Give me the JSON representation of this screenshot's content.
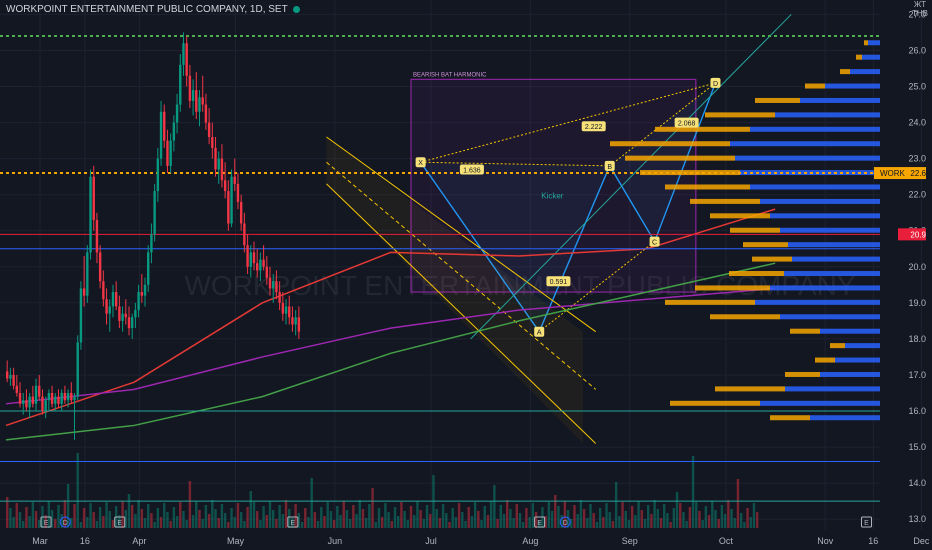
{
  "header": {
    "symbol_line": "WORKPOINT ENTERTAINMENT PUBLIC COMPANY, 1D, SET",
    "currency_label": "THB",
    "currency_prefix": "ЖT"
  },
  "watermark": "WORKPOINT ENTERTAINMENT PUBLIC COMPANY",
  "colors": {
    "background": "#131722",
    "up": "#089981",
    "down": "#f23645",
    "volume_profile_up": "#2962ff",
    "volume_profile_down": "#f7a600",
    "harmonic_line": "#2196f3",
    "channel": "#f7c600",
    "ma_red": "#e53935",
    "ma_purple": "#9c27b0",
    "ma_green": "#43a047"
  },
  "chart_data": {
    "type": "candlestick",
    "title": "WORKPOINT ENTERTAINMENT PUBLIC COMPANY, 1D, SET",
    "ylim": [
      12.7,
      27.4
    ],
    "y_ticks": [
      "27.0",
      "26.0",
      "25.0",
      "24.0",
      "23.0",
      "22.0",
      "21.0",
      "20.0",
      "19.0",
      "18.0",
      "17.0",
      "16.0",
      "15.0",
      "14.0",
      "13.0"
    ],
    "x_ticks": [
      {
        "label": "Mar",
        "day": 0
      },
      {
        "label": "16",
        "day": 14
      },
      {
        "label": "Apr",
        "day": 31
      },
      {
        "label": "May",
        "day": 61
      },
      {
        "label": "Jun",
        "day": 92
      },
      {
        "label": "Jul",
        "day": 122
      },
      {
        "label": "Aug",
        "day": 153
      },
      {
        "label": "Sep",
        "day": 184
      },
      {
        "label": "Oct",
        "day": 214
      },
      {
        "label": "Nov",
        "day": 245
      },
      {
        "label": "16",
        "day": 260
      },
      {
        "label": "Dec",
        "day": 275
      }
    ],
    "last_price_label": "22.6",
    "symbol_tag": "WORK",
    "level_label": "20.9",
    "horizontal_levels": [
      {
        "value": 27.5,
        "color": "#f23645"
      },
      {
        "value": 26.4,
        "color": "#4caf50",
        "style": "dotted"
      },
      {
        "value": 22.6,
        "color": "#f7a600",
        "style": "dotted"
      },
      {
        "value": 20.9,
        "color": "#e91e3a"
      },
      {
        "value": 20.5,
        "color": "#2962ff"
      },
      {
        "value": 16.0,
        "color": "#26a69a"
      },
      {
        "value": 14.6,
        "color": "#2962ff"
      },
      {
        "value": 13.5,
        "color": "#26a69a"
      }
    ],
    "pattern_label": "BEARISH BAT HARMONIC",
    "pattern_box": {
      "d0": 122,
      "d1": 214,
      "p0": 19.3,
      "p1": 25.2
    },
    "harmonic_points": [
      {
        "label": "X",
        "day": 125,
        "price": 22.9
      },
      {
        "label": "A",
        "day": 162,
        "price": 18.2
      },
      {
        "label": "B",
        "day": 184,
        "price": 22.8
      },
      {
        "label": "C",
        "day": 198,
        "price": 20.7
      },
      {
        "label": "D",
        "day": 217,
        "price": 25.1
      }
    ],
    "ratio_labels": [
      {
        "text": "1.636",
        "day": 141,
        "price": 22.7
      },
      {
        "text": "0.591",
        "day": 168,
        "price": 19.6
      },
      {
        "text": "2.222",
        "day": 179,
        "price": 23.9
      },
      {
        "text": "2.068",
        "day": 208,
        "price": 24.0
      }
    ],
    "annotation": "Kicker",
    "event_markers": [
      {
        "text": "E",
        "day": 5
      },
      {
        "text": "D",
        "day": 11
      },
      {
        "text": "E",
        "day": 28
      },
      {
        "text": "E",
        "day": 82
      },
      {
        "text": "E",
        "day": 159
      },
      {
        "text": "D",
        "day": 167
      },
      {
        "text": "E",
        "day": 261
      }
    ],
    "candles": [
      {
        "d": 0,
        "o": 17.1,
        "h": 17.4,
        "l": 16.8,
        "c": 16.9
      },
      {
        "d": 1,
        "o": 16.9,
        "h": 17.2,
        "l": 16.7,
        "c": 17.0
      },
      {
        "d": 2,
        "o": 17.0,
        "h": 17.2,
        "l": 16.6,
        "c": 16.7
      },
      {
        "d": 3,
        "o": 16.7,
        "h": 17.0,
        "l": 16.4,
        "c": 16.5
      },
      {
        "d": 4,
        "o": 16.5,
        "h": 16.8,
        "l": 16.1,
        "c": 16.2
      },
      {
        "d": 5,
        "o": 16.2,
        "h": 16.5,
        "l": 15.9,
        "c": 16.3
      },
      {
        "d": 6,
        "o": 16.3,
        "h": 16.6,
        "l": 16.0,
        "c": 16.1
      },
      {
        "d": 7,
        "o": 16.1,
        "h": 16.5,
        "l": 15.8,
        "c": 16.4
      },
      {
        "d": 8,
        "o": 16.4,
        "h": 16.7,
        "l": 16.1,
        "c": 16.2
      },
      {
        "d": 9,
        "o": 16.2,
        "h": 16.9,
        "l": 16.0,
        "c": 16.7
      },
      {
        "d": 10,
        "o": 16.7,
        "h": 17.0,
        "l": 16.3,
        "c": 16.4
      },
      {
        "d": 11,
        "o": 16.4,
        "h": 16.6,
        "l": 15.9,
        "c": 16.0
      },
      {
        "d": 12,
        "o": 16.0,
        "h": 16.4,
        "l": 15.8,
        "c": 16.3
      },
      {
        "d": 13,
        "o": 16.3,
        "h": 16.6,
        "l": 16.0,
        "c": 16.5
      },
      {
        "d": 14,
        "o": 16.5,
        "h": 16.7,
        "l": 16.1,
        "c": 16.2
      },
      {
        "d": 15,
        "o": 16.2,
        "h": 16.5,
        "l": 16.0,
        "c": 16.4
      },
      {
        "d": 16,
        "o": 16.4,
        "h": 16.6,
        "l": 16.1,
        "c": 16.2
      },
      {
        "d": 17,
        "o": 16.2,
        "h": 16.6,
        "l": 16.0,
        "c": 16.5
      },
      {
        "d": 18,
        "o": 16.5,
        "h": 16.7,
        "l": 16.2,
        "c": 16.3
      },
      {
        "d": 19,
        "o": 16.3,
        "h": 16.6,
        "l": 16.1,
        "c": 16.5
      },
      {
        "d": 20,
        "o": 16.5,
        "h": 16.8,
        "l": 16.2,
        "c": 16.3
      },
      {
        "d": 21,
        "o": 16.3,
        "h": 16.5,
        "l": 15.2,
        "c": 16.4
      },
      {
        "d": 22,
        "o": 16.4,
        "h": 18.1,
        "l": 16.3,
        "c": 17.9
      },
      {
        "d": 23,
        "o": 17.9,
        "h": 19.6,
        "l": 17.7,
        "c": 19.4
      },
      {
        "d": 24,
        "o": 19.4,
        "h": 20.3,
        "l": 18.9,
        "c": 19.2
      },
      {
        "d": 25,
        "o": 19.2,
        "h": 20.6,
        "l": 19.0,
        "c": 20.4
      },
      {
        "d": 26,
        "o": 20.4,
        "h": 22.7,
        "l": 20.2,
        "c": 22.5
      },
      {
        "d": 27,
        "o": 22.5,
        "h": 22.8,
        "l": 21.0,
        "c": 21.3
      },
      {
        "d": 28,
        "o": 21.3,
        "h": 21.5,
        "l": 20.1,
        "c": 20.4
      },
      {
        "d": 29,
        "o": 20.4,
        "h": 20.6,
        "l": 19.4,
        "c": 19.6
      },
      {
        "d": 30,
        "o": 19.6,
        "h": 19.9,
        "l": 18.9,
        "c": 19.1
      },
      {
        "d": 31,
        "o": 19.1,
        "h": 19.4,
        "l": 18.4,
        "c": 18.7
      },
      {
        "d": 32,
        "o": 18.7,
        "h": 19.1,
        "l": 18.2,
        "c": 18.9
      },
      {
        "d": 33,
        "o": 18.9,
        "h": 19.5,
        "l": 18.6,
        "c": 19.3
      },
      {
        "d": 34,
        "o": 19.3,
        "h": 19.6,
        "l": 18.8,
        "c": 18.9
      },
      {
        "d": 35,
        "o": 18.9,
        "h": 19.2,
        "l": 18.3,
        "c": 18.5
      },
      {
        "d": 36,
        "o": 18.5,
        "h": 18.9,
        "l": 18.2,
        "c": 18.7
      },
      {
        "d": 37,
        "o": 18.7,
        "h": 19.1,
        "l": 18.4,
        "c": 18.6
      },
      {
        "d": 38,
        "o": 18.6,
        "h": 18.9,
        "l": 18.1,
        "c": 18.3
      },
      {
        "d": 39,
        "o": 18.3,
        "h": 18.7,
        "l": 18.0,
        "c": 18.6
      },
      {
        "d": 40,
        "o": 18.6,
        "h": 19.0,
        "l": 18.3,
        "c": 18.8
      },
      {
        "d": 41,
        "o": 18.8,
        "h": 19.5,
        "l": 18.6,
        "c": 19.3
      },
      {
        "d": 42,
        "o": 19.3,
        "h": 19.8,
        "l": 19.0,
        "c": 19.2
      },
      {
        "d": 43,
        "o": 19.2,
        "h": 19.7,
        "l": 18.9,
        "c": 19.5
      },
      {
        "d": 44,
        "o": 19.5,
        "h": 20.6,
        "l": 19.3,
        "c": 20.4
      },
      {
        "d": 45,
        "o": 20.4,
        "h": 21.2,
        "l": 20.1,
        "c": 20.9
      },
      {
        "d": 46,
        "o": 20.9,
        "h": 22.3,
        "l": 20.7,
        "c": 22.1
      },
      {
        "d": 47,
        "o": 22.1,
        "h": 23.3,
        "l": 21.8,
        "c": 23.0
      },
      {
        "d": 48,
        "o": 23.0,
        "h": 24.6,
        "l": 22.8,
        "c": 24.3
      },
      {
        "d": 49,
        "o": 24.3,
        "h": 24.5,
        "l": 23.3,
        "c": 23.5
      },
      {
        "d": 50,
        "o": 23.5,
        "h": 23.8,
        "l": 22.6,
        "c": 22.8
      },
      {
        "d": 51,
        "o": 22.8,
        "h": 23.7,
        "l": 22.6,
        "c": 23.5
      },
      {
        "d": 52,
        "o": 23.5,
        "h": 24.2,
        "l": 23.2,
        "c": 24.0
      },
      {
        "d": 53,
        "o": 24.0,
        "h": 24.8,
        "l": 23.7,
        "c": 24.5
      },
      {
        "d": 54,
        "o": 24.5,
        "h": 25.9,
        "l": 24.3,
        "c": 25.6
      },
      {
        "d": 55,
        "o": 25.6,
        "h": 26.5,
        "l": 25.3,
        "c": 26.2
      },
      {
        "d": 56,
        "o": 26.2,
        "h": 26.4,
        "l": 25.0,
        "c": 25.3
      },
      {
        "d": 57,
        "o": 25.3,
        "h": 25.6,
        "l": 24.4,
        "c": 24.6
      },
      {
        "d": 58,
        "o": 24.6,
        "h": 25.2,
        "l": 24.2,
        "c": 24.9
      },
      {
        "d": 59,
        "o": 24.9,
        "h": 25.4,
        "l": 24.1,
        "c": 24.3
      },
      {
        "d": 60,
        "o": 24.3,
        "h": 24.9,
        "l": 23.9,
        "c": 24.7
      },
      {
        "d": 61,
        "o": 24.7,
        "h": 25.3,
        "l": 24.3,
        "c": 24.5
      },
      {
        "d": 62,
        "o": 24.5,
        "h": 24.8,
        "l": 23.8,
        "c": 24.0
      },
      {
        "d": 63,
        "o": 24.0,
        "h": 24.4,
        "l": 23.4,
        "c": 23.6
      },
      {
        "d": 64,
        "o": 23.6,
        "h": 24.0,
        "l": 23.0,
        "c": 23.3
      },
      {
        "d": 65,
        "o": 23.3,
        "h": 23.6,
        "l": 22.5,
        "c": 22.7
      },
      {
        "d": 66,
        "o": 22.7,
        "h": 23.2,
        "l": 22.3,
        "c": 23.0
      },
      {
        "d": 67,
        "o": 23.0,
        "h": 23.4,
        "l": 22.2,
        "c": 22.4
      },
      {
        "d": 68,
        "o": 22.4,
        "h": 22.9,
        "l": 21.9,
        "c": 22.1
      },
      {
        "d": 69,
        "o": 22.1,
        "h": 22.4,
        "l": 21.0,
        "c": 21.2
      },
      {
        "d": 70,
        "o": 21.2,
        "h": 22.7,
        "l": 21.1,
        "c": 22.5
      },
      {
        "d": 71,
        "o": 22.5,
        "h": 23.0,
        "l": 22.1,
        "c": 22.3
      },
      {
        "d": 72,
        "o": 22.3,
        "h": 22.6,
        "l": 21.6,
        "c": 21.8
      },
      {
        "d": 73,
        "o": 21.8,
        "h": 22.0,
        "l": 21.0,
        "c": 21.2
      },
      {
        "d": 74,
        "o": 21.2,
        "h": 21.5,
        "l": 20.4,
        "c": 20.6
      },
      {
        "d": 75,
        "o": 20.6,
        "h": 20.9,
        "l": 19.8,
        "c": 20.0
      },
      {
        "d": 76,
        "o": 20.0,
        "h": 20.6,
        "l": 19.7,
        "c": 20.4
      },
      {
        "d": 77,
        "o": 20.4,
        "h": 20.7,
        "l": 19.9,
        "c": 20.1
      },
      {
        "d": 78,
        "o": 20.1,
        "h": 20.5,
        "l": 19.7,
        "c": 19.9
      },
      {
        "d": 79,
        "o": 19.9,
        "h": 20.4,
        "l": 19.6,
        "c": 20.2
      },
      {
        "d": 80,
        "o": 20.2,
        "h": 20.6,
        "l": 19.9,
        "c": 20.0
      },
      {
        "d": 81,
        "o": 20.0,
        "h": 20.3,
        "l": 19.5,
        "c": 19.7
      },
      {
        "d": 82,
        "o": 19.7,
        "h": 20.0,
        "l": 19.2,
        "c": 19.4
      },
      {
        "d": 83,
        "o": 19.4,
        "h": 19.8,
        "l": 19.0,
        "c": 19.6
      },
      {
        "d": 84,
        "o": 19.6,
        "h": 19.9,
        "l": 19.1,
        "c": 19.3
      },
      {
        "d": 85,
        "o": 19.3,
        "h": 19.6,
        "l": 18.8,
        "c": 19.0
      },
      {
        "d": 86,
        "o": 19.0,
        "h": 19.3,
        "l": 18.5,
        "c": 18.7
      },
      {
        "d": 87,
        "o": 18.7,
        "h": 19.1,
        "l": 18.4,
        "c": 18.9
      },
      {
        "d": 88,
        "o": 18.9,
        "h": 19.2,
        "l": 18.4,
        "c": 18.6
      },
      {
        "d": 89,
        "o": 18.6,
        "h": 18.9,
        "l": 18.2,
        "c": 18.4
      },
      {
        "d": 90,
        "o": 18.4,
        "h": 18.8,
        "l": 18.1,
        "c": 18.6
      },
      {
        "d": 91,
        "o": 18.6,
        "h": 18.9,
        "l": 18.0,
        "c": 18.2
      }
    ],
    "volume_profile": [
      {
        "p": 26.2,
        "up": 12,
        "down": 4
      },
      {
        "p": 25.8,
        "up": 18,
        "down": 6
      },
      {
        "p": 25.4,
        "up": 30,
        "down": 10
      },
      {
        "p": 25.0,
        "up": 55,
        "down": 20
      },
      {
        "p": 24.6,
        "up": 80,
        "down": 45
      },
      {
        "p": 24.2,
        "up": 105,
        "down": 70
      },
      {
        "p": 23.8,
        "up": 130,
        "down": 95
      },
      {
        "p": 23.4,
        "up": 150,
        "down": 120
      },
      {
        "p": 23.0,
        "up": 145,
        "down": 110
      },
      {
        "p": 22.6,
        "up": 140,
        "down": 100
      },
      {
        "p": 22.2,
        "up": 130,
        "down": 85
      },
      {
        "p": 21.8,
        "up": 120,
        "down": 70
      },
      {
        "p": 21.4,
        "up": 110,
        "down": 60
      },
      {
        "p": 21.0,
        "up": 100,
        "down": 50
      },
      {
        "p": 20.6,
        "up": 92,
        "down": 45
      },
      {
        "p": 20.2,
        "up": 88,
        "down": 40
      },
      {
        "p": 19.8,
        "up": 96,
        "down": 55
      },
      {
        "p": 19.4,
        "up": 110,
        "down": 75
      },
      {
        "p": 19.0,
        "up": 125,
        "down": 90
      },
      {
        "p": 18.6,
        "up": 100,
        "down": 70
      },
      {
        "p": 18.2,
        "up": 60,
        "down": 30
      },
      {
        "p": 17.8,
        "up": 35,
        "down": 15
      },
      {
        "p": 17.4,
        "up": 45,
        "down": 20
      },
      {
        "p": 17.0,
        "up": 60,
        "down": 35
      },
      {
        "p": 16.6,
        "up": 95,
        "down": 70
      },
      {
        "p": 16.2,
        "up": 120,
        "down": 90
      },
      {
        "p": 15.8,
        "up": 70,
        "down": 40
      }
    ]
  }
}
